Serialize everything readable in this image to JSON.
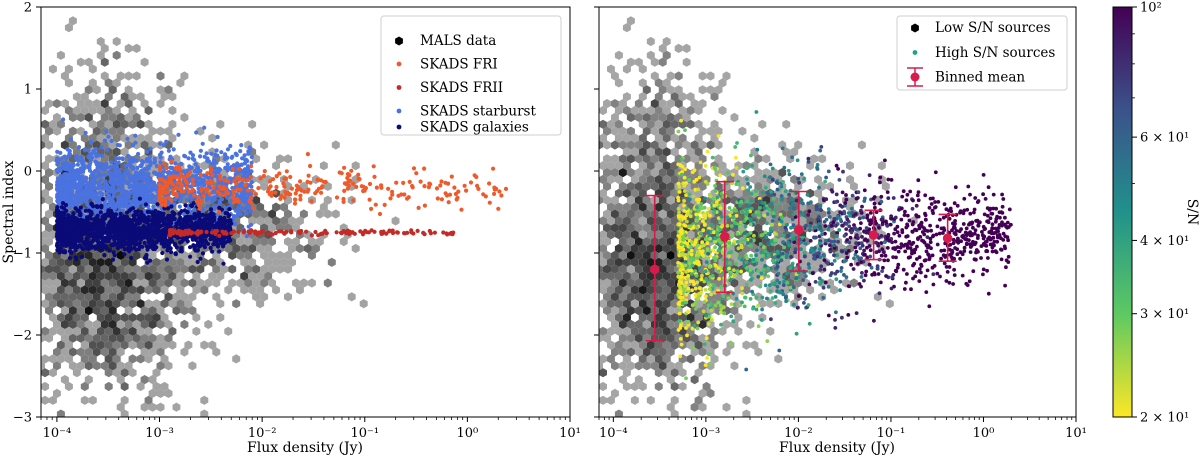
{
  "chart_data": [
    {
      "type": "scatter",
      "panel": "left",
      "xlabel": "Flux density (Jy)",
      "ylabel": "Spectral index",
      "xscale": "log",
      "xlim": [
        7e-05,
        10
      ],
      "ylim": [
        -3,
        2
      ],
      "x_tick_labels": [
        "10⁻⁴",
        "10⁻³",
        "10⁻²",
        "10⁻¹",
        "10⁰",
        "10¹"
      ],
      "y_tick_labels": [
        "2",
        "1",
        "0",
        "−1",
        "−2",
        "−3"
      ],
      "legend_position": "top-right",
      "series": [
        {
          "name": "MALS data",
          "kind": "hexbin",
          "color": "#000000",
          "clusters": [
            {
              "logx_center": -3.55,
              "y_center": -1.25,
              "logx_sd": 0.42,
              "y_sd": 0.75,
              "count": 1400
            },
            {
              "logx_center": -2.3,
              "y_center": -0.7,
              "logx_sd": 0.5,
              "y_sd": 0.45,
              "count": 500
            },
            {
              "logx_center": -3.5,
              "y_center": 0.3,
              "logx_sd": 0.35,
              "y_sd": 0.6,
              "count": 300
            }
          ]
        },
        {
          "name": "SKADS FRI",
          "color": "#ef5a2b",
          "logx_range": [
            -3.0,
            0.4
          ],
          "y_center": -0.2,
          "y_sd": 0.12,
          "count": 320
        },
        {
          "name": "SKADS FRII",
          "color": "#c42a26",
          "logx_range": [
            -2.9,
            -0.1
          ],
          "y_center": -0.75,
          "y_sd": 0.015,
          "count": 160
        },
        {
          "name": "SKADS starburst",
          "color": "#4a72e0",
          "logx_range": [
            -4.0,
            -2.1
          ],
          "y_center": -0.22,
          "y_sd": 0.25,
          "count": 1500
        },
        {
          "name": "SKADS galaxies",
          "color": "#0a0a78",
          "logx_range": [
            -4.0,
            -2.3
          ],
          "y_center": -0.72,
          "y_sd": 0.13,
          "count": 1500
        }
      ]
    },
    {
      "type": "scatter",
      "panel": "right",
      "xlabel": "Flux density (Jy)",
      "ylabel": "",
      "xscale": "log",
      "xlim": [
        7e-05,
        10
      ],
      "ylim": [
        -3,
        2
      ],
      "x_tick_labels": [
        "10⁻⁴",
        "10⁻³",
        "10⁻²",
        "10⁻¹",
        "10⁰",
        "10¹"
      ],
      "legend_position": "top-right",
      "series": [
        {
          "name": "Low S/N sources",
          "kind": "hexbin",
          "color": "#000000",
          "clusters": [
            {
              "logx_center": -3.55,
              "y_center": -1.25,
              "logx_sd": 0.42,
              "y_sd": 0.75,
              "count": 1400
            },
            {
              "logx_center": -2.3,
              "y_center": -0.7,
              "logx_sd": 0.5,
              "y_sd": 0.45,
              "count": 500
            },
            {
              "logx_center": -3.5,
              "y_center": 0.3,
              "logx_sd": 0.35,
              "y_sd": 0.6,
              "count": 300
            }
          ]
        },
        {
          "name": "High S/N sources",
          "color_by": "S/N",
          "logx_range": [
            -3.3,
            0.3
          ],
          "y_center": -0.75,
          "y_sd": 0.35,
          "count": 1800
        },
        {
          "name": "Binned mean",
          "color": "#d81b4a",
          "x": [
            0.00028,
            0.0016,
            0.0101,
            0.065,
            0.41
          ],
          "y": [
            -1.2,
            -0.8,
            -0.72,
            -0.78,
            -0.82
          ],
          "y_err_low": [
            -2.07,
            -1.48,
            -1.22,
            -1.08,
            -1.1
          ],
          "y_err_high": [
            -0.3,
            -0.13,
            -0.25,
            -0.48,
            -0.53
          ]
        }
      ]
    },
    {
      "type": "colorbar",
      "label": "S/N",
      "scale": "log",
      "range": [
        20,
        100
      ],
      "colormap": "viridis_r",
      "tick_labels": [
        "10²",
        "6 × 10¹",
        "4 × 10¹",
        "3 × 10¹",
        "2 × 10¹"
      ],
      "tick_values": [
        100,
        60,
        40,
        30,
        20
      ]
    }
  ]
}
